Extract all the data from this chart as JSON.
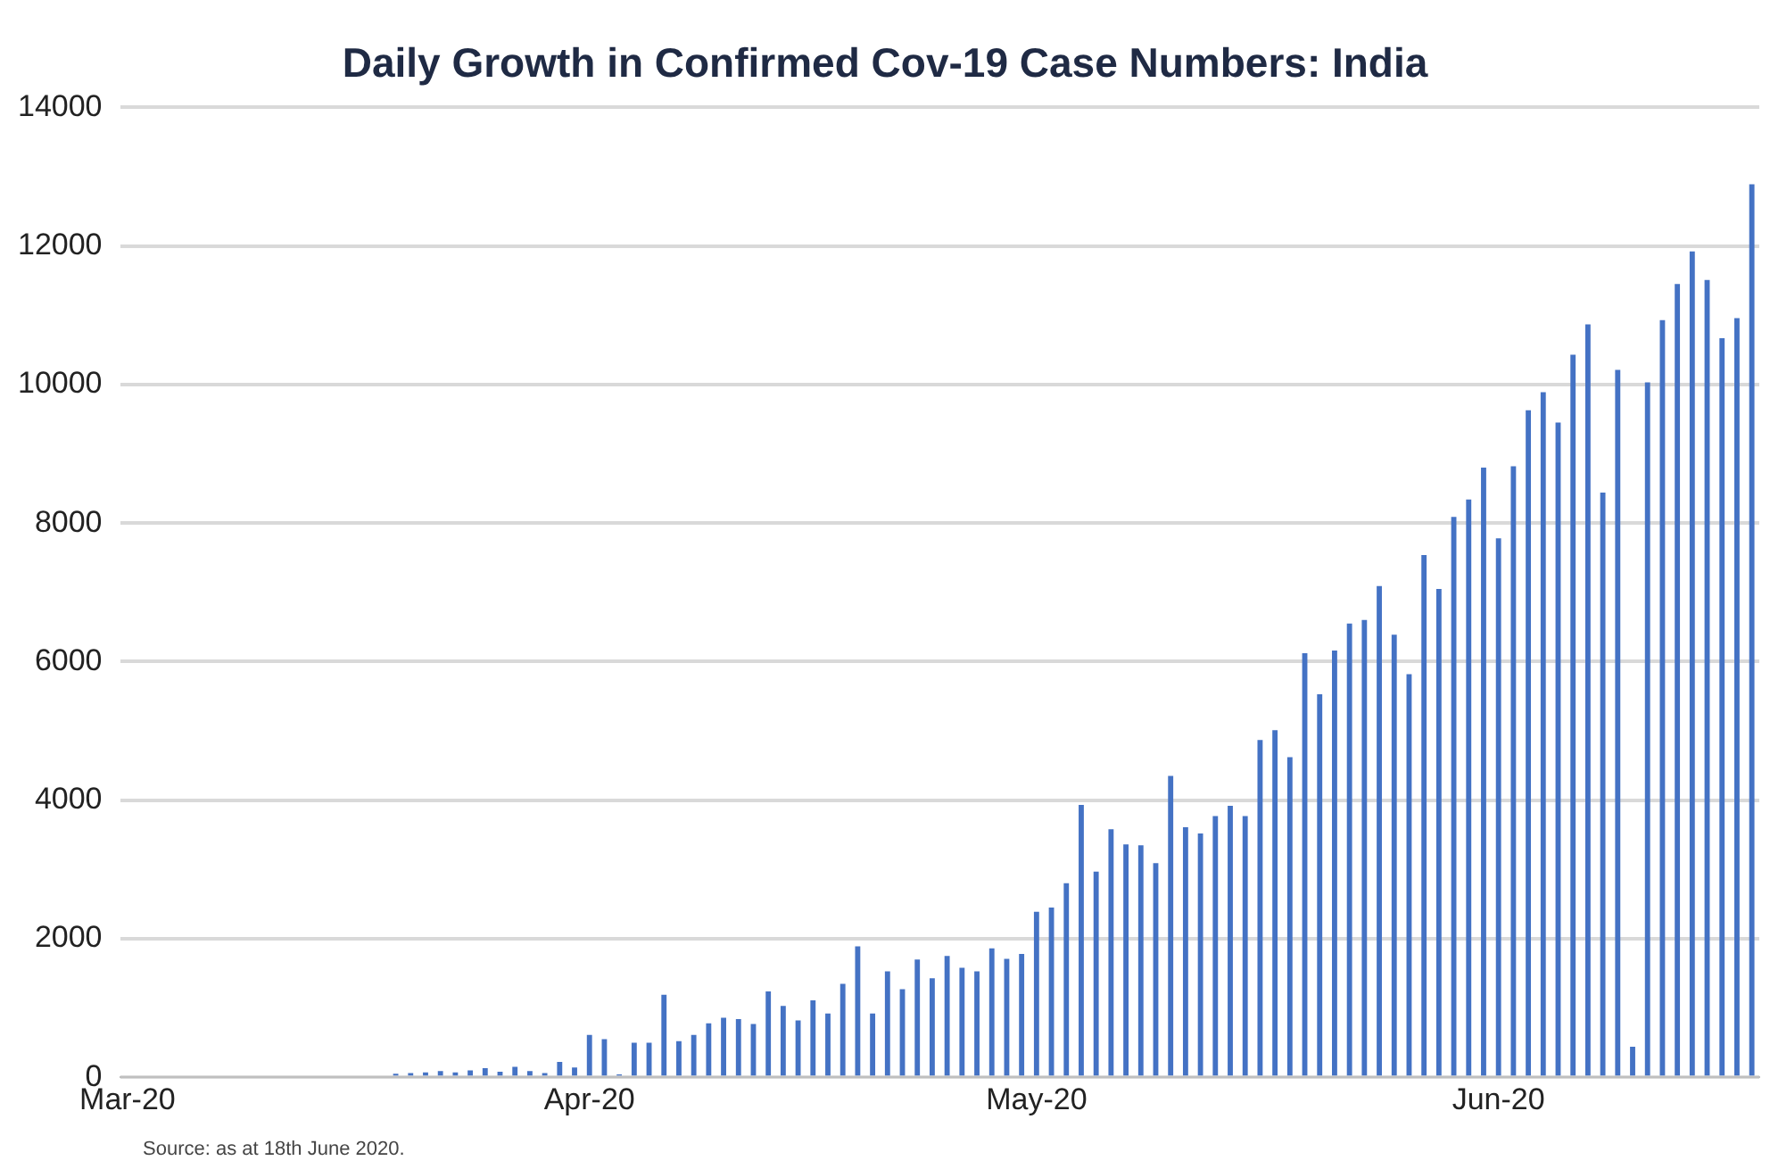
{
  "chart_data": {
    "type": "bar",
    "title": "Daily Growth in Confirmed Cov-19 Case Numbers: India",
    "categories": [
      "Mar-20",
      null,
      null,
      null,
      null,
      null,
      null,
      null,
      null,
      null,
      null,
      null,
      null,
      null,
      null,
      null,
      null,
      null,
      null,
      null,
      null,
      null,
      null,
      null,
      null,
      null,
      null,
      null,
      null,
      null,
      null,
      "Apr-20",
      null,
      null,
      null,
      null,
      null,
      null,
      null,
      null,
      null,
      null,
      null,
      null,
      null,
      null,
      null,
      null,
      null,
      null,
      null,
      null,
      null,
      null,
      null,
      null,
      null,
      null,
      null,
      null,
      null,
      "May-20",
      null,
      null,
      null,
      null,
      null,
      null,
      null,
      null,
      null,
      null,
      null,
      null,
      null,
      null,
      null,
      null,
      null,
      null,
      null,
      null,
      null,
      null,
      null,
      null,
      null,
      null,
      null,
      null,
      null,
      null,
      "Jun-20",
      null,
      null,
      null,
      null,
      null,
      null,
      null,
      null,
      null,
      null,
      null,
      null,
      null,
      null,
      null,
      null,
      null
    ],
    "values": [
      0,
      0,
      0,
      null,
      0,
      0,
      0,
      null,
      null,
      null,
      null,
      null,
      null,
      null,
      null,
      null,
      null,
      null,
      50,
      60,
      70,
      90,
      70,
      100,
      130,
      80,
      150,
      90,
      60,
      220,
      140,
      610,
      550,
      40,
      500,
      500,
      1190,
      520,
      610,
      780,
      860,
      840,
      770,
      1240,
      1030,
      820,
      1110,
      920,
      1350,
      1890,
      920,
      1530,
      1270,
      1700,
      1430,
      1750,
      1580,
      1530,
      1860,
      1710,
      1780,
      2390,
      2450,
      2800,
      3930,
      2970,
      3580,
      3360,
      3350,
      3090,
      4350,
      3610,
      3520,
      3770,
      3920,
      3770,
      4870,
      5010,
      4620,
      6120,
      5530,
      6160,
      6550,
      6600,
      7090,
      6390,
      5820,
      7540,
      7050,
      8090,
      8340,
      8800,
      7780,
      8820,
      9630,
      9890,
      9450,
      10430,
      10870,
      8440,
      10210,
      440,
      10030,
      10930,
      11450,
      11920,
      11510,
      10670,
      10960,
      12890
    ],
    "color": "#4472c4",
    "ylim": [
      0,
      14000
    ],
    "yticks": [
      0,
      2000,
      4000,
      6000,
      8000,
      10000,
      12000,
      14000
    ],
    "grid": "y",
    "annotations": [
      "Source: as at 18th June 2020."
    ]
  }
}
